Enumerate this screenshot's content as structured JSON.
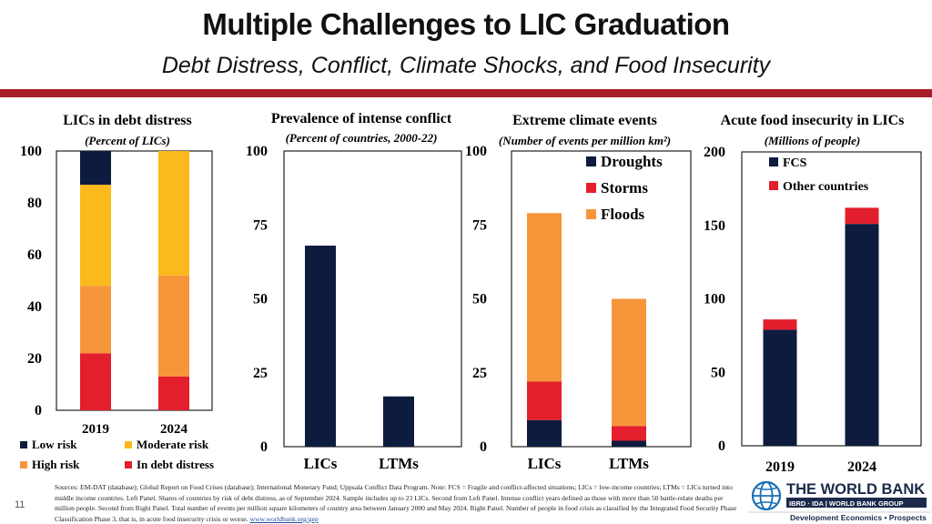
{
  "header": {
    "title": "Multiple Challenges to LIC Graduation",
    "subtitle": "Debt Distress, Conflict, Climate Shocks, and Food Insecurity"
  },
  "panels": [
    {
      "title": "LICs in debt distress",
      "units": "(Percent of LICs)"
    },
    {
      "title": "Prevalence of intense conflict",
      "units": "(Percent of countries, 2000-22)"
    },
    {
      "title": "Extreme climate events",
      "units": "(Number of events per million km²)"
    },
    {
      "title": "Acute food insecurity in LICs",
      "units": "(Millions of people)"
    }
  ],
  "colors": {
    "navy": "#0d1b3e",
    "orange": "#f7953b",
    "yellow": "#fbb91c",
    "red": "#e31f2e",
    "title_rule": "#a61e2a"
  },
  "chart_data": [
    {
      "type": "bar",
      "stacked": true,
      "categories": [
        "2019",
        "2024"
      ],
      "series": [
        {
          "name": "In debt distress",
          "color": "#e31f2e",
          "values": [
            22,
            13
          ]
        },
        {
          "name": "High risk",
          "color": "#f7953b",
          "values": [
            26,
            39
          ]
        },
        {
          "name": "Moderate risk",
          "color": "#fbb91c",
          "values": [
            39,
            48
          ]
        },
        {
          "name": "Low risk",
          "color": "#0d1b3e",
          "values": [
            13,
            0
          ]
        }
      ],
      "ylim": [
        0,
        100
      ],
      "yticks": [
        "0",
        "20",
        "40",
        "60",
        "80",
        "100"
      ],
      "legend_position": "bottom"
    },
    {
      "type": "bar",
      "categories": [
        "LICs",
        "LTMs"
      ],
      "series": [
        {
          "color": "#0d1b3e",
          "values": [
            68,
            17
          ]
        }
      ],
      "ylim": [
        0,
        100
      ],
      "yticks": [
        "0",
        "25",
        "50",
        "75",
        "100"
      ]
    },
    {
      "type": "bar",
      "stacked": true,
      "categories": [
        "LICs",
        "LTMs"
      ],
      "series": [
        {
          "name": "Droughts",
          "color": "#0d1b3e",
          "values": [
            9,
            2
          ]
        },
        {
          "name": "Storms",
          "color": "#e31f2e",
          "values": [
            13,
            5
          ]
        },
        {
          "name": "Floods",
          "color": "#f7953b",
          "values": [
            57,
            43
          ]
        }
      ],
      "ylim": [
        0,
        100
      ],
      "yticks": [
        "0",
        "25",
        "50",
        "75",
        "100"
      ],
      "legend_position": "top-right"
    },
    {
      "type": "bar",
      "stacked": true,
      "categories": [
        "2019",
        "2024"
      ],
      "series": [
        {
          "name": "FCS",
          "color": "#0d1b3e",
          "values": [
            79,
            151
          ]
        },
        {
          "name": "Other countries",
          "color": "#e31f2e",
          "values": [
            7,
            11
          ]
        }
      ],
      "ylim": [
        0,
        200
      ],
      "yticks": [
        "0",
        "50",
        "100",
        "150",
        "200"
      ],
      "legend_position": "top-right"
    }
  ],
  "legend_bottom": [
    {
      "label": "Low risk",
      "color": "#0d1b3e"
    },
    {
      "label": "Moderate risk",
      "color": "#fbb91c"
    },
    {
      "label": "High risk",
      "color": "#f7953b"
    },
    {
      "label": "In debt distress",
      "color": "#e31f2e"
    }
  ],
  "footer": {
    "sources": "Sources: EM-DAT (database); Global Report on Food Crises (database); International Monetary Fund; Uppsala Conflict Data Program. Note: FCS = Fragile and conflict-affected situations; LICs = low-income countries; LTMs = LICs turned into middle income countries. Left Panel. Shares of countries by risk of debt distress, as of September 2024. Sample includes up to 23 LICs. Second from Left Panel. Intense conflict years defined as those with more than 50 battle-relate deaths per million people. Second from Right Panel. Total number of events per million square kilometers of country area between January 2000 and May 2024. Right Panel. Number of people in food crisis as classified by the Integrated Food Security Phase Classification Phase 3, that is, in acute food insecurity crisis or worse.",
    "link": "www.worldbank.org/gep",
    "slide_number": "11",
    "logo_name": "THE WORLD BANK",
    "logo_sub": "IBRD · IDA | WORLD BANK GROUP",
    "logo_tagline": "Development Economics • Prospects"
  }
}
